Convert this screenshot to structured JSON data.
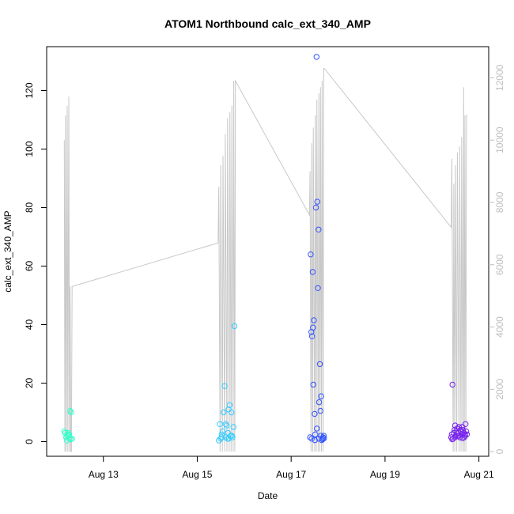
{
  "chart_data": {
    "type": "scatter",
    "title": "ATOM1 Northbound calc_ext_340_AMP",
    "xlabel": "Date",
    "ylabel": "calc_ext_340_AMP",
    "xlim": [
      "2022-08-11T19:00",
      "2022-08-21T05:00"
    ],
    "ylim": [
      -5,
      135
    ],
    "y2lim": [
      -150,
      13000
    ],
    "x_ticks": [
      "Aug 13",
      "Aug 15",
      "Aug 17",
      "Aug 19",
      "Aug 21"
    ],
    "x_tick_dates": [
      "2022-08-13T00:00",
      "2022-08-15T00:00",
      "2022-08-17T00:00",
      "2022-08-19T00:00",
      "2022-08-21T00:00"
    ],
    "y_ticks": [
      0,
      20,
      40,
      60,
      80,
      100,
      120
    ],
    "y2_ticks": [
      0,
      2000,
      4000,
      6000,
      8000,
      10000,
      12000
    ],
    "grid": false,
    "series": [
      {
        "type": "line",
        "axis": "right",
        "color": "#c8c8c8",
        "x": [
          "2022-08-12T04:00",
          "2022-08-12T04:20",
          "2022-08-12T04:40",
          "2022-08-12T05:00",
          "2022-08-12T05:30",
          "2022-08-12T05:50",
          "2022-08-12T06:20",
          "2022-08-12T06:40",
          "2022-08-12T07:00",
          "2022-08-12T07:20",
          "2022-08-12T07:40",
          "2022-08-12T08:00",
          "2022-08-15T10:40",
          "2022-08-15T11:00",
          "2022-08-15T11:40",
          "2022-08-15T12:00",
          "2022-08-15T12:50",
          "2022-08-15T13:10",
          "2022-08-15T14:00",
          "2022-08-15T14:20",
          "2022-08-15T15:10",
          "2022-08-15T15:30",
          "2022-08-15T16:20",
          "2022-08-15T16:40",
          "2022-08-15T17:20",
          "2022-08-15T17:40",
          "2022-08-15T18:20",
          "2022-08-15T18:40",
          "2022-08-15T19:10",
          "2022-08-15T19:30",
          "2022-08-17T09:20",
          "2022-08-17T09:40",
          "2022-08-17T10:10",
          "2022-08-17T10:30",
          "2022-08-17T11:00",
          "2022-08-17T11:20",
          "2022-08-17T12:00",
          "2022-08-17T12:20",
          "2022-08-17T12:50",
          "2022-08-17T13:10",
          "2022-08-17T13:50",
          "2022-08-17T14:10",
          "2022-08-17T14:40",
          "2022-08-17T15:00",
          "2022-08-17T15:30",
          "2022-08-17T15:50",
          "2022-08-17T16:20",
          "2022-08-17T16:40",
          "2022-08-17T17:00",
          "2022-08-20T09:50",
          "2022-08-20T10:10",
          "2022-08-20T10:50",
          "2022-08-20T11:10",
          "2022-08-20T11:40",
          "2022-08-20T12:00",
          "2022-08-20T12:40",
          "2022-08-20T13:00",
          "2022-08-20T13:50",
          "2022-08-20T14:10",
          "2022-08-20T14:50",
          "2022-08-20T15:10",
          "2022-08-20T15:50",
          "2022-08-20T16:10",
          "2022-08-20T16:30",
          "2022-08-20T16:50",
          "2022-08-20T17:20",
          "2022-08-20T17:40",
          "2022-08-20T18:00"
        ],
        "y": [
          10000,
          0,
          10800,
          0,
          11100,
          0,
          11400,
          0,
          5300,
          0,
          0,
          5300,
          6700,
          8500,
          0,
          9200,
          0,
          9500,
          0,
          10200,
          0,
          10700,
          0,
          10900,
          0,
          11100,
          0,
          11900,
          0,
          11900,
          7600,
          9000,
          0,
          9900,
          0,
          10400,
          0,
          10800,
          0,
          11300,
          0,
          11500,
          0,
          11700,
          0,
          11900,
          0,
          12300,
          12300,
          7200,
          9400,
          0,
          8600,
          0,
          9200,
          0,
          9600,
          0,
          9800,
          0,
          10100,
          0,
          11700,
          0,
          10800,
          0,
          10800,
          10800
        ]
      },
      {
        "type": "points",
        "axis": "left",
        "color": "#33ffcc",
        "x": [
          "2022-08-12T04:00",
          "2022-08-12T04:30",
          "2022-08-12T05:00",
          "2022-08-12T05:30",
          "2022-08-12T06:00",
          "2022-08-12T06:30",
          "2022-08-12T07:00",
          "2022-08-12T07:30",
          "2022-08-12T08:00",
          "2022-08-12T06:40",
          "2022-08-12T07:20",
          "2022-08-12T05:20",
          "2022-08-12T06:10"
        ],
        "y": [
          3.5,
          3.0,
          1.5,
          2.0,
          3.0,
          2.5,
          10.5,
          10.0,
          1.0,
          1.0,
          0.8,
          0.4,
          2.2
        ]
      },
      {
        "type": "points",
        "axis": "left",
        "color": "#33ccff",
        "x": [
          "2022-08-15T11:00",
          "2022-08-15T11:30",
          "2022-08-15T12:00",
          "2022-08-15T12:30",
          "2022-08-15T13:00",
          "2022-08-15T13:30",
          "2022-08-15T14:00",
          "2022-08-15T14:30",
          "2022-08-15T15:00",
          "2022-08-15T15:30",
          "2022-08-15T16:00",
          "2022-08-15T16:30",
          "2022-08-15T17:00",
          "2022-08-15T17:30",
          "2022-08-15T18:00",
          "2022-08-15T18:30",
          "2022-08-15T19:00",
          "2022-08-15T14:40",
          "2022-08-15T15:40",
          "2022-08-15T16:10",
          "2022-08-15T17:40",
          "2022-08-15T12:20"
        ],
        "y": [
          0.4,
          6.0,
          1.0,
          2.5,
          3.5,
          10.0,
          19.0,
          6.0,
          5.5,
          1.0,
          11.0,
          12.5,
          2.0,
          10.0,
          1.5,
          5.0,
          39.5,
          1.5,
          3.0,
          1.0,
          2.0,
          1.5
        ]
      },
      {
        "type": "points",
        "axis": "left",
        "color": "#3355ff",
        "x": [
          "2022-08-17T09:40",
          "2022-08-17T10:00",
          "2022-08-17T10:20",
          "2022-08-17T10:40",
          "2022-08-17T11:00",
          "2022-08-17T11:20",
          "2022-08-17T11:40",
          "2022-08-17T12:00",
          "2022-08-17T12:20",
          "2022-08-17T12:40",
          "2022-08-17T13:00",
          "2022-08-17T13:20",
          "2022-08-17T13:40",
          "2022-08-17T14:00",
          "2022-08-17T14:20",
          "2022-08-17T14:40",
          "2022-08-17T15:00",
          "2022-08-17T15:20",
          "2022-08-17T15:40",
          "2022-08-17T16:00",
          "2022-08-17T16:20",
          "2022-08-17T16:40",
          "2022-08-17T10:30",
          "2022-08-17T11:10",
          "2022-08-17T12:10",
          "2022-08-17T13:10",
          "2022-08-17T14:10",
          "2022-08-17T15:10",
          "2022-08-17T16:10",
          "2022-08-17T16:50"
        ],
        "y": [
          1.5,
          64.0,
          37.5,
          36.0,
          58.0,
          19.5,
          41.5,
          9.5,
          2.5,
          80.0,
          131.5,
          82.0,
          52.5,
          72.5,
          13.5,
          26.5,
          10.5,
          15.5,
          0.5,
          1.0,
          1.5,
          2.0,
          1.0,
          39.0,
          0.5,
          4.5,
          1.0,
          2.0,
          0.8,
          1.2
        ]
      },
      {
        "type": "points",
        "axis": "left",
        "color": "#7722ee",
        "x": [
          "2022-08-20T09:50",
          "2022-08-20T10:10",
          "2022-08-20T10:30",
          "2022-08-20T10:50",
          "2022-08-20T11:10",
          "2022-08-20T11:30",
          "2022-08-20T11:50",
          "2022-08-20T12:10",
          "2022-08-20T12:30",
          "2022-08-20T12:50",
          "2022-08-20T13:10",
          "2022-08-20T13:30",
          "2022-08-20T13:50",
          "2022-08-20T14:10",
          "2022-08-20T14:30",
          "2022-08-20T14:50",
          "2022-08-20T15:10",
          "2022-08-20T15:30",
          "2022-08-20T15:50",
          "2022-08-20T16:10",
          "2022-08-20T16:30",
          "2022-08-20T16:50",
          "2022-08-20T17:10",
          "2022-08-20T17:30",
          "2022-08-20T17:50",
          "2022-08-20T10:20",
          "2022-08-20T11:40",
          "2022-08-20T13:40",
          "2022-08-20T15:40",
          "2022-08-20T17:00"
        ],
        "y": [
          1.5,
          2.5,
          19.5,
          1.0,
          3.0,
          4.0,
          5.5,
          2.0,
          3.5,
          4.5,
          2.0,
          3.0,
          5.0,
          1.5,
          4.0,
          3.5,
          2.5,
          5.0,
          4.0,
          3.0,
          1.5,
          2.5,
          6.0,
          3.5,
          2.5,
          0.8,
          1.5,
          2.0,
          1.2,
          2.0
        ]
      }
    ]
  }
}
